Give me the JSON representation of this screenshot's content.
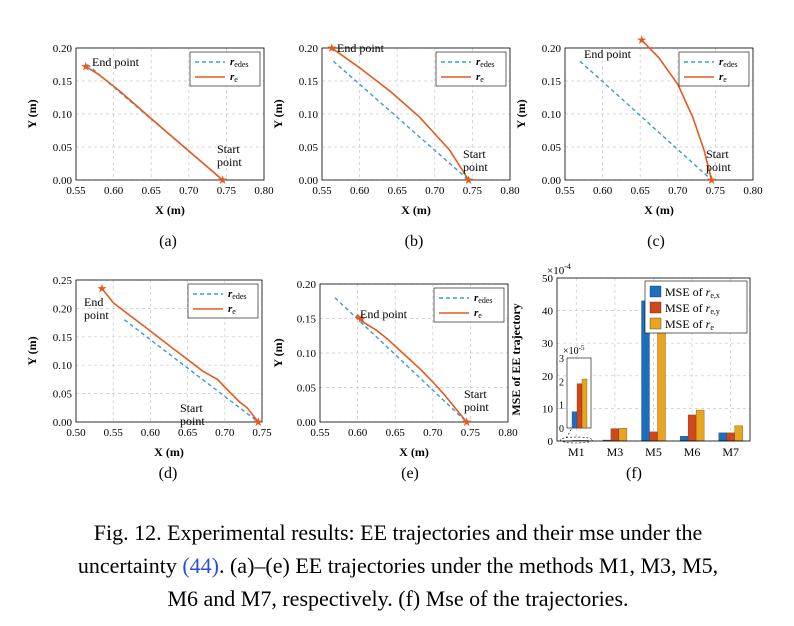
{
  "colors": {
    "desired": "#3b9bd6",
    "actual": "#e55a1c",
    "mse_x": "#1c6fbf",
    "mse_y": "#d2461a",
    "mse_total": "#e8a51d",
    "cite": "#2a4fd6"
  },
  "chart_data": [
    {
      "id": "a",
      "type": "line",
      "panel_label": "(a)",
      "xlabel": "X (m)",
      "ylabel": "Y (m)",
      "xlim": [
        0.55,
        0.8
      ],
      "ylim": [
        0,
        0.2
      ],
      "xticks": [
        "0.55",
        "0.60",
        "0.65",
        "0.70",
        "0.75",
        "0.80"
      ],
      "yticks": [
        "0.00",
        "0.05",
        "0.10",
        "0.15",
        "0.20"
      ],
      "legend": [
        "r_edes",
        "r_e"
      ],
      "series": [
        {
          "name": "r_edes",
          "x": [
            0.565,
            0.745
          ],
          "y": [
            0.175,
            0.0
          ]
        },
        {
          "name": "r_e",
          "x": [
            0.745,
            0.7,
            0.65,
            0.61,
            0.58,
            0.563
          ],
          "y": [
            0.0,
            0.044,
            0.093,
            0.133,
            0.16,
            0.172
          ]
        }
      ],
      "annotations": [
        {
          "text": "End point"
        },
        {
          "text": "Start point"
        }
      ]
    },
    {
      "id": "b",
      "type": "line",
      "panel_label": "(b)",
      "xlabel": "X (m)",
      "ylabel": "Y (m)",
      "xlim": [
        0.55,
        0.8
      ],
      "ylim": [
        0,
        0.2
      ],
      "xticks": [
        "0.55",
        "0.60",
        "0.65",
        "0.70",
        "0.75",
        "0.80"
      ],
      "yticks": [
        "0.00",
        "0.05",
        "0.10",
        "0.15",
        "0.20"
      ],
      "legend": [
        "r_edes",
        "r_e"
      ],
      "series": [
        {
          "name": "r_edes",
          "x": [
            0.565,
            0.745
          ],
          "y": [
            0.18,
            0.0
          ]
        },
        {
          "name": "r_e",
          "x": [
            0.745,
            0.72,
            0.68,
            0.64,
            0.6,
            0.563
          ],
          "y": [
            0.0,
            0.045,
            0.095,
            0.135,
            0.17,
            0.2
          ]
        }
      ],
      "annotations": [
        {
          "text": "End point"
        },
        {
          "text": "Start point"
        }
      ]
    },
    {
      "id": "c",
      "type": "line",
      "panel_label": "(c)",
      "xlabel": "X (m)",
      "ylabel": "Y (m)",
      "xlim": [
        0.55,
        0.8
      ],
      "ylim": [
        0,
        0.2
      ],
      "xticks": [
        "0.55",
        "0.60",
        "0.65",
        "0.70",
        "0.75",
        "0.80"
      ],
      "yticks": [
        "0.00",
        "0.05",
        "0.10",
        "0.15",
        "0.20"
      ],
      "legend": [
        "r_edes",
        "r_e"
      ],
      "series": [
        {
          "name": "r_edes",
          "x": [
            0.57,
            0.745
          ],
          "y": [
            0.18,
            0.0
          ]
        },
        {
          "name": "r_e",
          "x": [
            0.745,
            0.735,
            0.72,
            0.7,
            0.675,
            0.652
          ],
          "y": [
            0.0,
            0.045,
            0.095,
            0.145,
            0.185,
            0.212
          ]
        }
      ],
      "annotations": [
        {
          "text": "End point"
        },
        {
          "text": "Start point"
        }
      ]
    },
    {
      "id": "d",
      "type": "line",
      "panel_label": "(d)",
      "xlabel": "X (m)",
      "ylabel": "Y (m)",
      "xlim": [
        0.5,
        0.75
      ],
      "ylim": [
        0,
        0.25
      ],
      "xticks": [
        "0.50",
        "0.55",
        "0.60",
        "0.65",
        "0.70",
        "0.75"
      ],
      "yticks": [
        "0.00",
        "0.05",
        "0.10",
        "0.15",
        "0.20",
        "0.25"
      ],
      "legend": [
        "r_edes",
        "r_e"
      ],
      "series": [
        {
          "name": "r_edes",
          "x": [
            0.565,
            0.745
          ],
          "y": [
            0.18,
            0.0
          ]
        },
        {
          "name": "r_e",
          "x": [
            0.745,
            0.73,
            0.72,
            0.705,
            0.69,
            0.67,
            0.65,
            0.63,
            0.61,
            0.59,
            0.57,
            0.55,
            0.535
          ],
          "y": [
            0.0,
            0.025,
            0.035,
            0.055,
            0.075,
            0.09,
            0.11,
            0.13,
            0.15,
            0.17,
            0.19,
            0.21,
            0.235
          ]
        }
      ],
      "annotations": [
        {
          "text": "End point"
        },
        {
          "text": "Start point"
        }
      ]
    },
    {
      "id": "e",
      "type": "line",
      "panel_label": "(e)",
      "xlabel": "X (m)",
      "ylabel": "Y (m)",
      "xlim": [
        0.55,
        0.8
      ],
      "ylim": [
        0,
        0.2
      ],
      "xticks": [
        "0.55",
        "0.60",
        "0.65",
        "0.70",
        "0.75",
        "0.80"
      ],
      "yticks": [
        "0.00",
        "0.05",
        "0.10",
        "0.15",
        "0.20"
      ],
      "legend": [
        "r_edes",
        "r_e"
      ],
      "series": [
        {
          "name": "r_edes",
          "x": [
            0.57,
            0.745
          ],
          "y": [
            0.18,
            0.0
          ]
        },
        {
          "name": "r_e",
          "x": [
            0.745,
            0.73,
            0.715,
            0.7,
            0.685,
            0.67,
            0.655,
            0.64,
            0.625,
            0.61,
            0.598,
            0.6,
            0.605
          ],
          "y": [
            0.0,
            0.02,
            0.04,
            0.058,
            0.075,
            0.09,
            0.105,
            0.12,
            0.133,
            0.143,
            0.152,
            0.155,
            0.15
          ]
        }
      ],
      "annotations": [
        {
          "text": "End point"
        },
        {
          "text": "Start point"
        }
      ]
    },
    {
      "id": "f",
      "type": "bar",
      "panel_label": "(f)",
      "ylabel": "MSE of EE trajectory",
      "scale_label": "×10",
      "scale_exponent": "-4",
      "ylim": [
        0,
        50
      ],
      "yticks": [
        "0",
        "10",
        "20",
        "30",
        "40",
        "50"
      ],
      "categories": [
        "M1",
        "M3",
        "M5",
        "M6",
        "M7"
      ],
      "legend_prefix": "MSE of",
      "legend_subscripts": [
        "e,x",
        "e,y",
        "e"
      ],
      "series": [
        {
          "name": "MSE of r_e,x",
          "values": [
            0.07,
            0.3,
            43,
            1.5,
            2.5
          ]
        },
        {
          "name": "MSE of r_e,y",
          "values": [
            0.19,
            3.8,
            2.8,
            8.0,
            2.5
          ]
        },
        {
          "name": "MSE of r_e",
          "values": [
            0.21,
            3.9,
            46,
            9.5,
            4.7
          ]
        }
      ],
      "inset": {
        "scale_label": "×10",
        "scale_exponent": "-5",
        "ylim": [
          0,
          3
        ],
        "yticks": [
          "0",
          "1",
          "2",
          "3"
        ],
        "values": [
          0.7,
          1.9,
          2.1
        ]
      }
    }
  ],
  "caption": {
    "line1": "Fig. 12.   Experimental results: EE trajectories and their mse under the",
    "line2_pre": "uncertainty ",
    "line2_cite": "(44)",
    "line2_post": ". (a)–(e) EE trajectories under the methods M1, M3, M5,",
    "line3": "M6 and M7, respectively. (f) Mse of the trajectories."
  }
}
